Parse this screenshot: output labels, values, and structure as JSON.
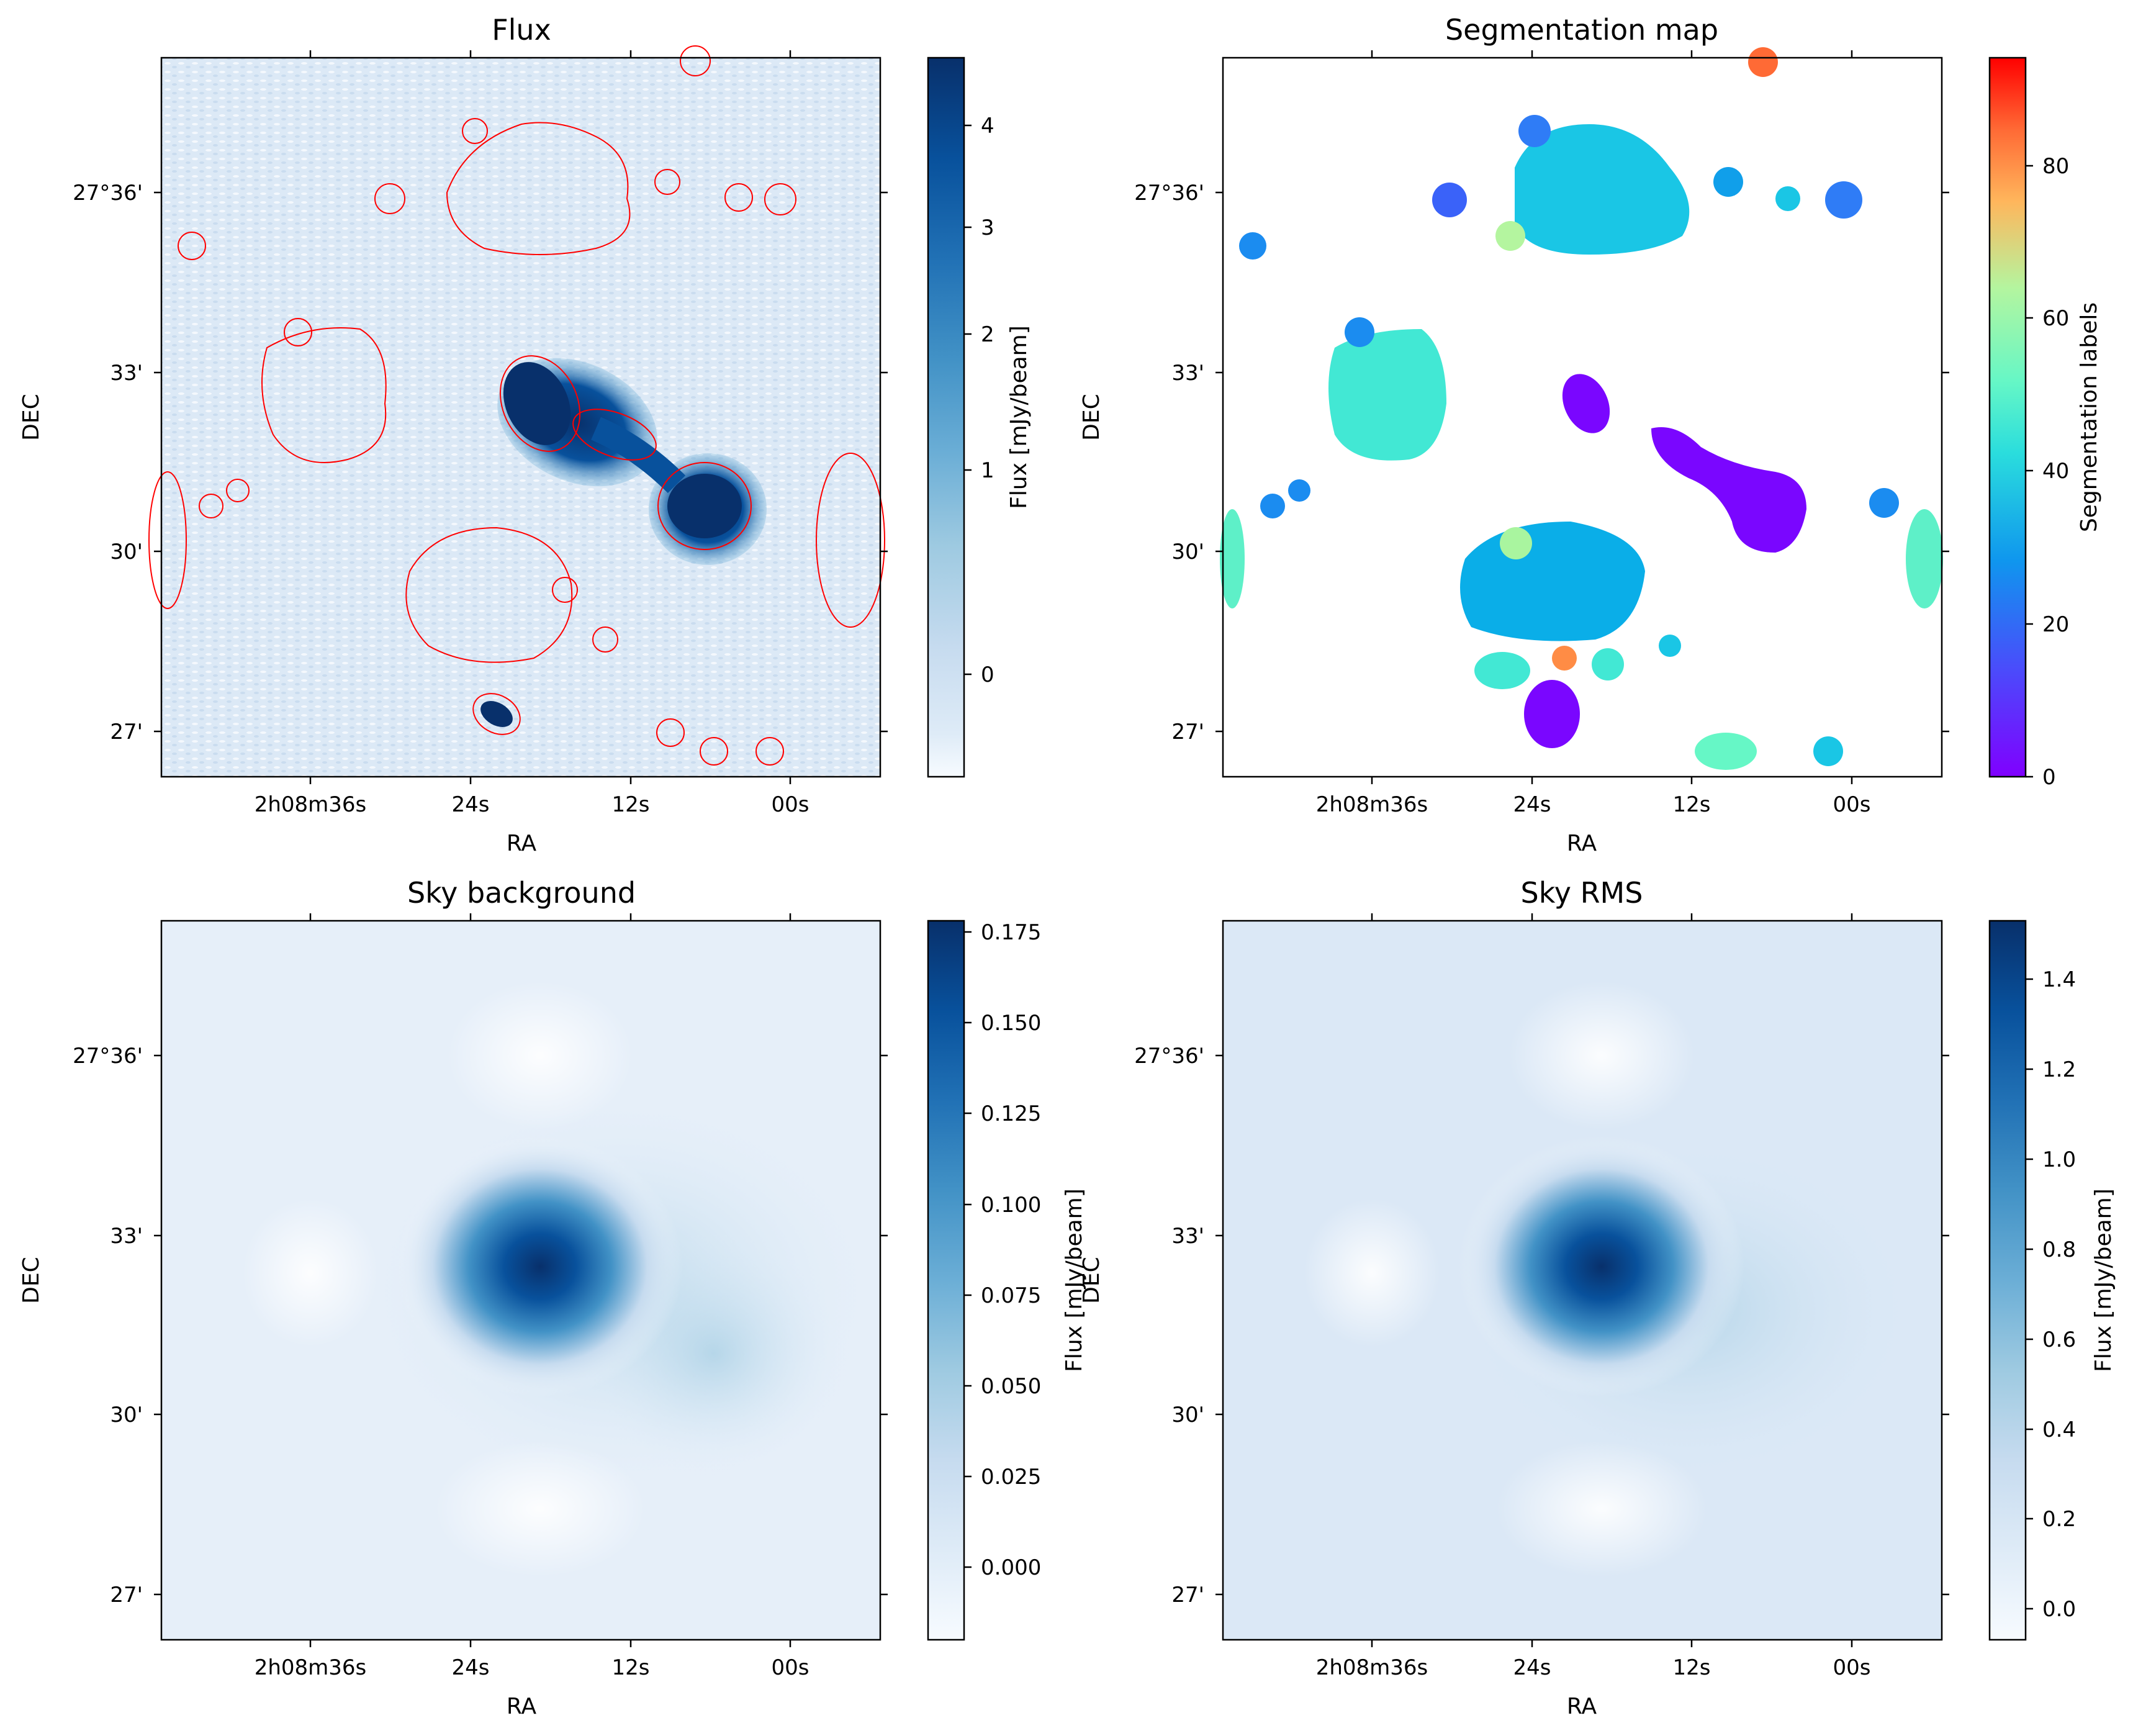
{
  "chart_data": [
    {
      "type": "heatmap",
      "title": "Flux",
      "xlabel": "RA",
      "ylabel": "DEC",
      "x_ticks": [
        "2h08m36s",
        "24s",
        "12s",
        "00s"
      ],
      "y_ticks": [
        "27°36'",
        "33'",
        "30'",
        "27'"
      ],
      "colormap": "Blues",
      "contour_color": "#ff0000",
      "colorbar": {
        "label": "Flux [mJy/beam]",
        "ticks": [
          0,
          1,
          2,
          3,
          4
        ],
        "range": [
          -0.3,
          4.6
        ]
      }
    },
    {
      "type": "heatmap",
      "title": "Segmentation map",
      "xlabel": "RA",
      "ylabel": "DEC",
      "x_ticks": [
        "2h08m36s",
        "24s",
        "12s",
        "00s"
      ],
      "y_ticks": [
        "27°36'",
        "33'",
        "30'",
        "27'"
      ],
      "colormap": "rainbow",
      "colorbar": {
        "label": "Segmentation labels",
        "ticks": [
          0,
          20,
          40,
          60,
          80
        ],
        "range": [
          0,
          94
        ]
      }
    },
    {
      "type": "heatmap",
      "title": "Sky background",
      "xlabel": "RA",
      "ylabel": "DEC",
      "x_ticks": [
        "2h08m36s",
        "24s",
        "12s",
        "00s"
      ],
      "y_ticks": [
        "27°36'",
        "33'",
        "30'",
        "27'"
      ],
      "colormap": "Blues",
      "colorbar": {
        "label": "Flux [mJy/beam]",
        "ticks": [
          "0.000",
          "0.025",
          "0.050",
          "0.075",
          "0.100",
          "0.125",
          "0.150",
          "0.175"
        ],
        "range": [
          -0.018,
          0.18
        ]
      }
    },
    {
      "type": "heatmap",
      "title": "Sky RMS",
      "xlabel": "RA",
      "ylabel": "DEC",
      "x_ticks": [
        "2h08m36s",
        "24s",
        "12s",
        "00s"
      ],
      "y_ticks": [
        "27°36'",
        "33'",
        "30'",
        "27'"
      ],
      "colormap": "Blues",
      "colorbar": {
        "label": "Flux [mJy/beam]",
        "ticks": [
          "0.0",
          "0.2",
          "0.4",
          "0.6",
          "0.8",
          "1.0",
          "1.2",
          "1.4"
        ],
        "range": [
          -0.07,
          1.53
        ]
      }
    }
  ]
}
